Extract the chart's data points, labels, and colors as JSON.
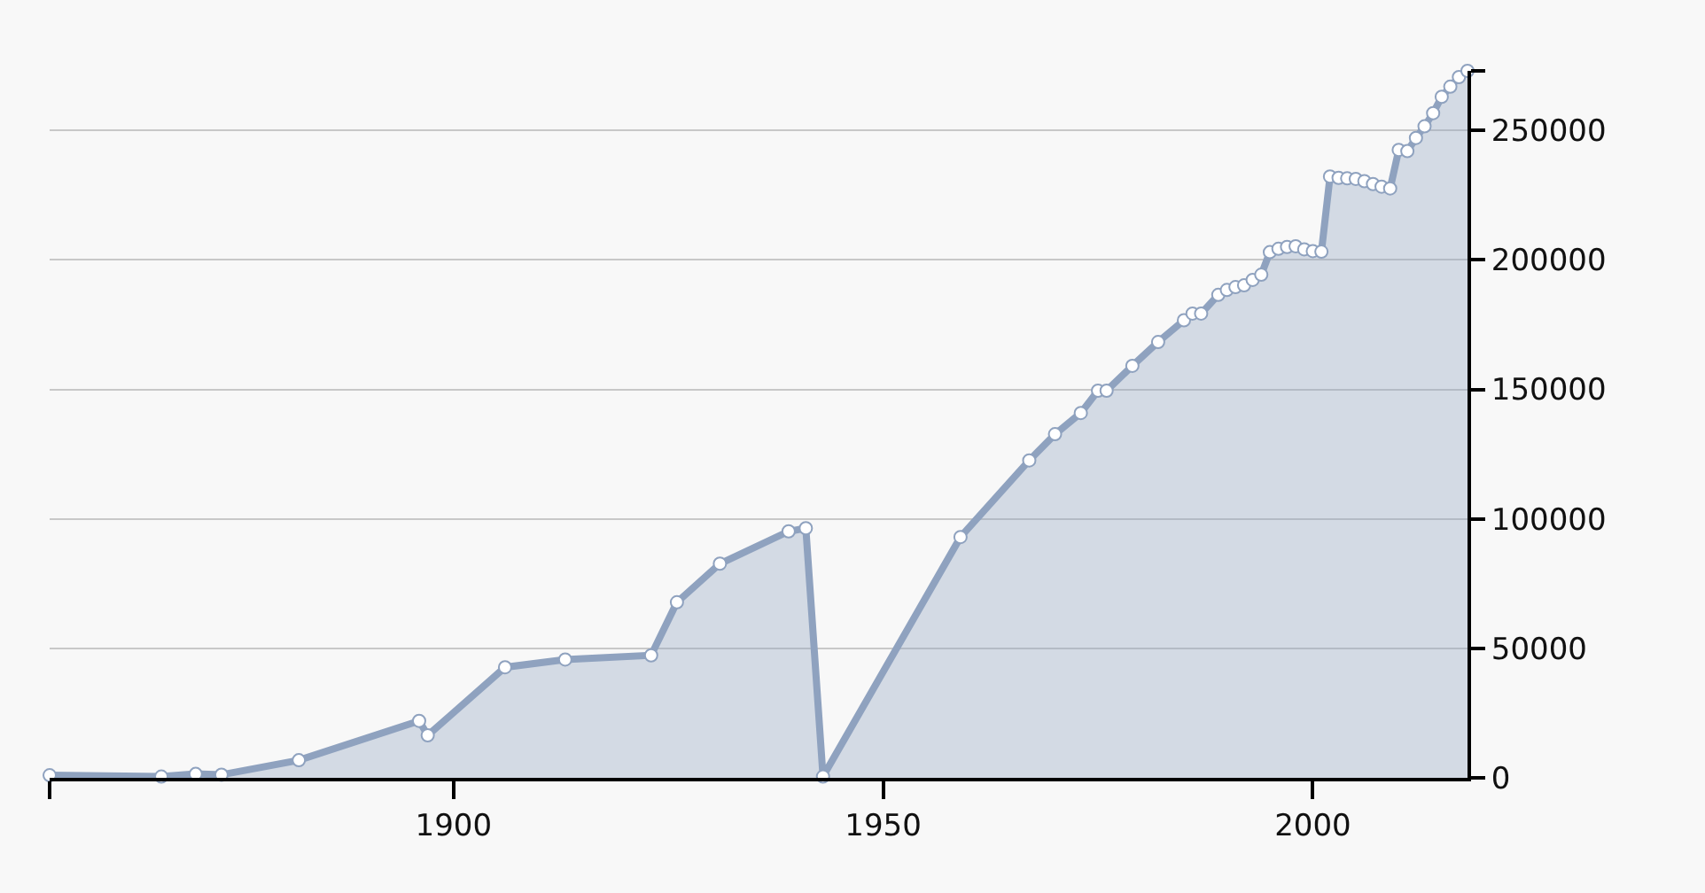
{
  "chart_data": {
    "type": "area",
    "x": [
      1853,
      1866,
      1870,
      1873,
      1882,
      1896,
      1897,
      1906,
      1913,
      1923,
      1926,
      1931,
      1939,
      1941,
      1943,
      1959,
      1967,
      1970,
      1973,
      1975,
      1976,
      1979,
      1982,
      1985,
      1986,
      1987,
      1989,
      1990,
      1991,
      1992,
      1993,
      1994,
      1995,
      1996,
      1997,
      1998,
      1999,
      2000,
      2001,
      2002,
      2003,
      2004,
      2005,
      2006,
      2007,
      2008,
      2009,
      2010,
      2011,
      2012,
      2013,
      2014,
      2015,
      2016,
      2017,
      2018
    ],
    "series": [
      {
        "color": "#8fa2bf",
        "values": [
          1000,
          500,
          1500,
          1200,
          6800,
          22000,
          16400,
          42700,
          45700,
          47300,
          67800,
          82700,
          95200,
          96400,
          500,
          93000,
          122600,
          132700,
          140900,
          149500,
          149500,
          159100,
          168300,
          176700,
          179300,
          179300,
          186500,
          188400,
          189500,
          190200,
          192300,
          194300,
          203000,
          204300,
          205000,
          205300,
          204100,
          203400,
          203200,
          232200,
          231700,
          231500,
          231300,
          230400,
          229300,
          228300,
          227600,
          242500,
          242000,
          247100,
          251600,
          256700,
          263000,
          266900,
          270600,
          273000
        ]
      }
    ],
    "xlim": [
      1853,
      2018
    ],
    "xticks": [
      {
        "value": 1853,
        "label": null
      },
      1900,
      1950,
      2000
    ],
    "ylim": [
      0,
      273000
    ],
    "yticks": [
      0,
      50000,
      100000,
      150000,
      200000,
      250000,
      {
        "value": 273000,
        "label": null
      }
    ],
    "grid": "y",
    "marker": "circle",
    "line_style": "solid",
    "legend": false
  }
}
